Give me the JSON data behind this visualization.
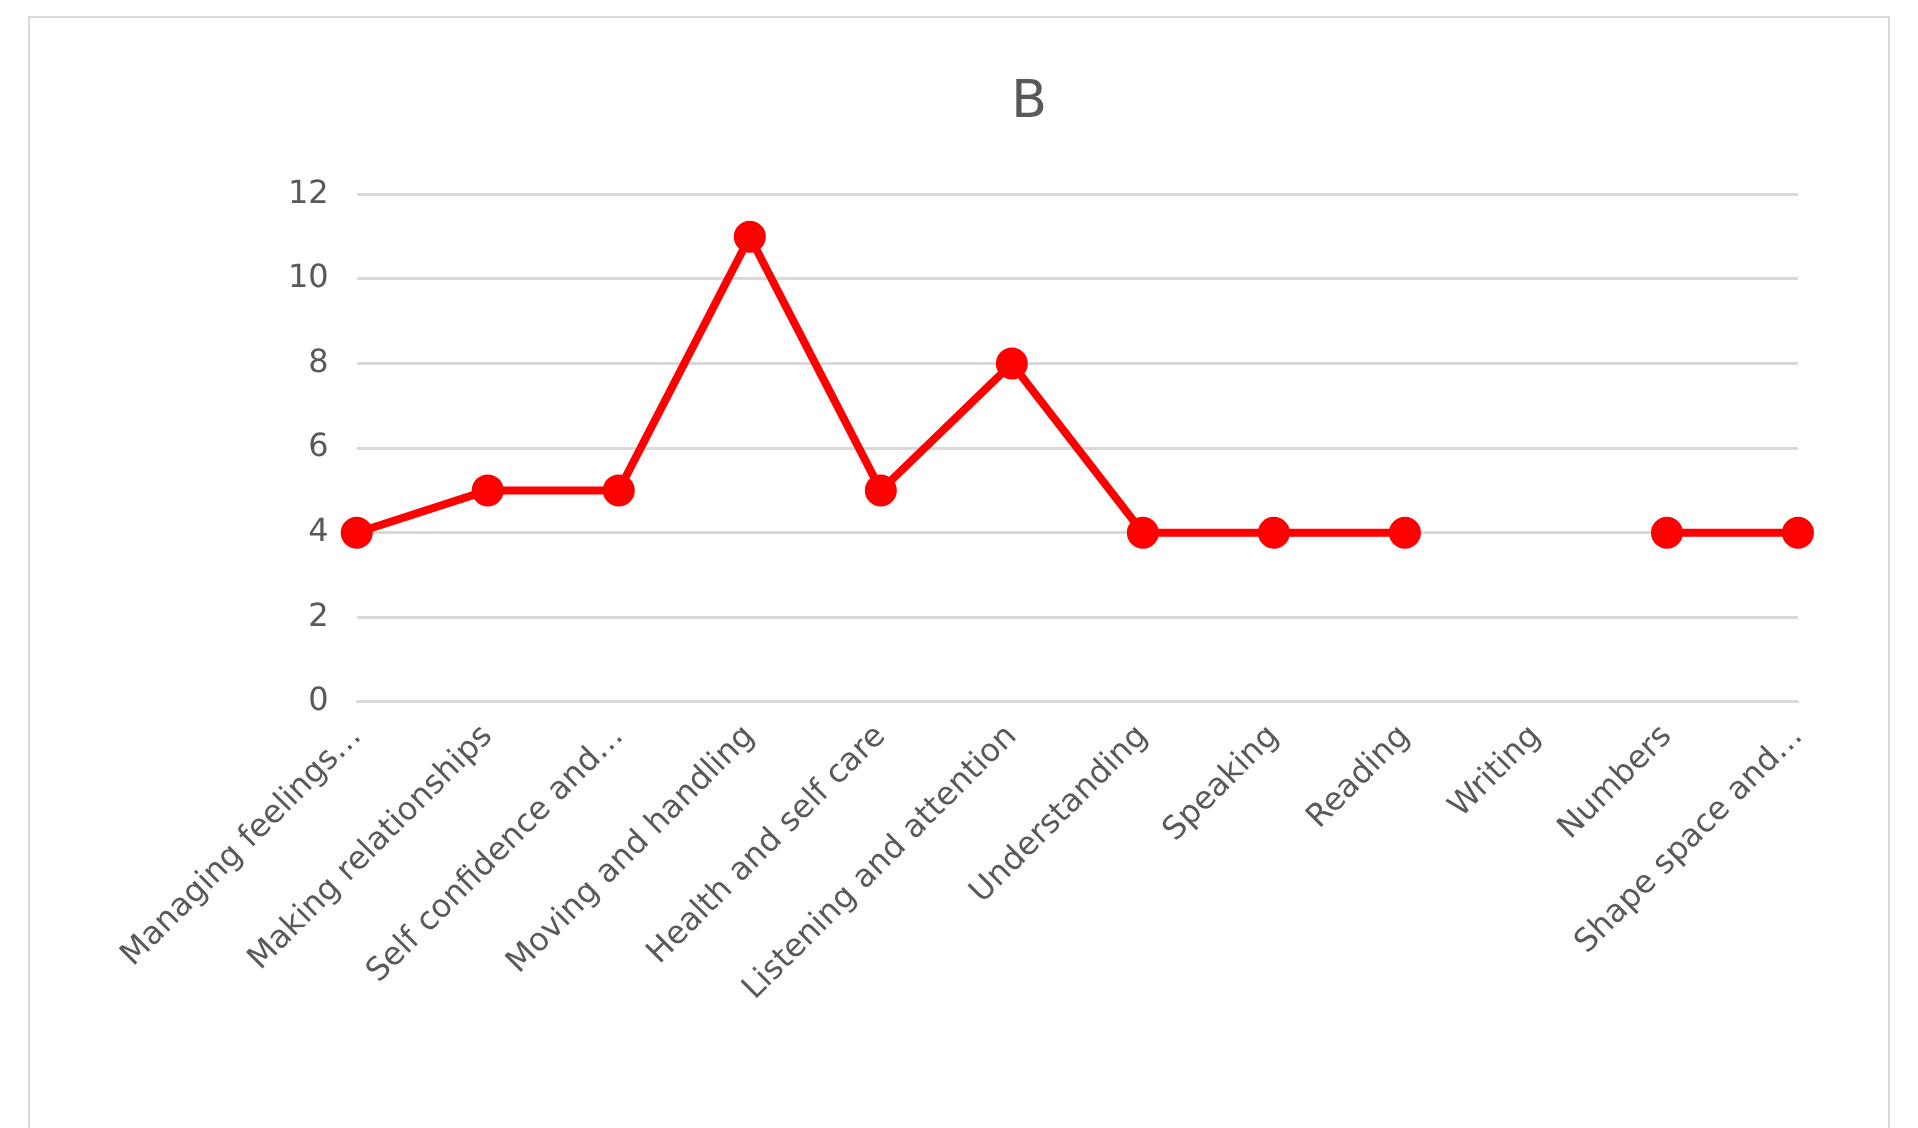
{
  "chart_data": {
    "type": "line",
    "title": "B",
    "categories": [
      "Managing feelings…",
      "Making relationships",
      "Self confidence and…",
      "Moving and handling",
      "Health and self care",
      "Listening and attention",
      "Understanding",
      "Speaking",
      "Reading",
      "Writing",
      "Numbers",
      "Shape space and…"
    ],
    "series": [
      {
        "color": "#ff0000",
        "values": [
          4,
          5,
          5,
          11,
          5,
          8,
          4,
          4,
          4,
          null,
          4,
          4
        ]
      }
    ],
    "ylim": [
      0,
      12
    ],
    "yticks": [
      0,
      2,
      4,
      6,
      8,
      10,
      12
    ],
    "grid": "y",
    "legend": false,
    "marker": "circle",
    "line_style": "solid"
  }
}
